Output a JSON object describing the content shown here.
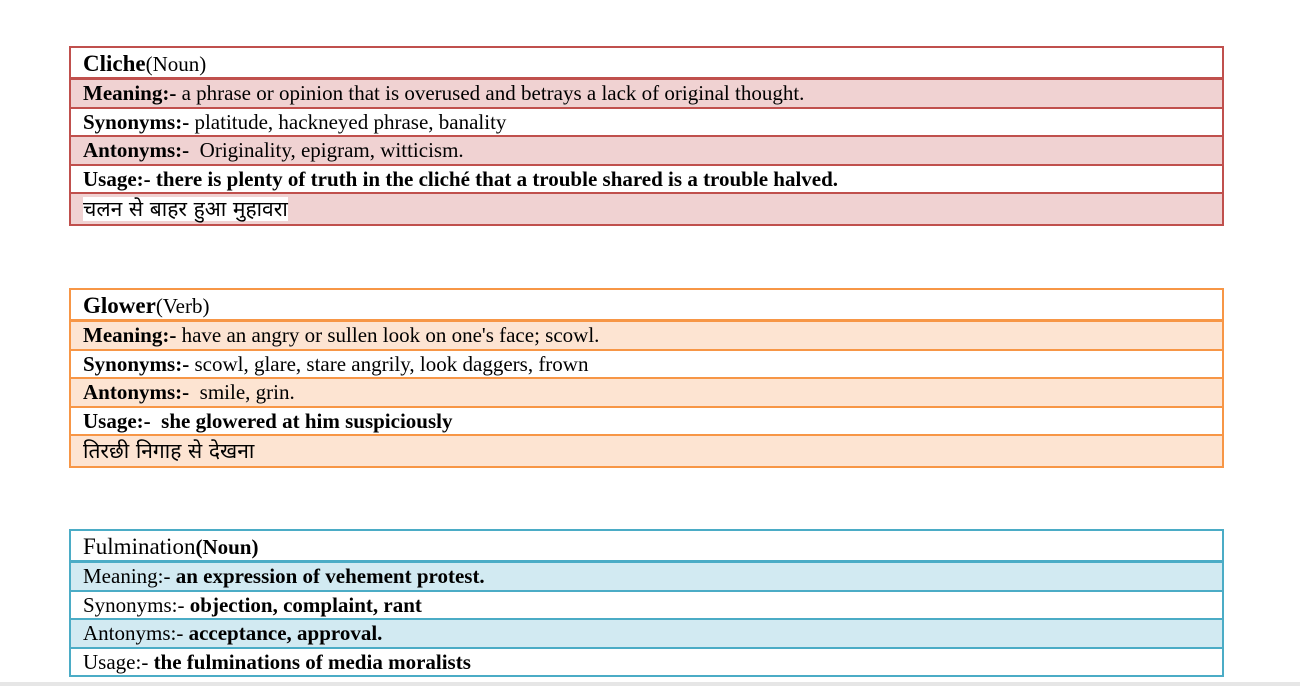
{
  "cards": [
    {
      "word": "Cliche",
      "pos": "(Noun)",
      "meaning_label": "Meaning:-",
      "meaning": " a phrase or opinion that is overused and betrays a lack of original thought.",
      "synonyms_label": "Synonyms:-",
      "synonyms": " platitude, hackneyed phrase, banality",
      "antonyms_label": "Antonyms:-",
      "antonyms": "  Originality, epigram, witticism.",
      "usage_label": "Usage:-",
      "usage": " there is plenty of truth in the cliché that a trouble shared is a trouble halved.",
      "hindi": "चलन से बाहर हुआ मुहावरा",
      "color": "#c0504d"
    },
    {
      "word": "Glower",
      "pos": "(Verb)",
      "meaning_label": "Meaning:-",
      "meaning": " have an angry or sullen look on one's face; scowl.",
      "synonyms_label": "Synonyms:-",
      "synonyms": " scowl, glare, stare angrily, look daggers, frown",
      "antonyms_label": "Antonyms:-",
      "antonyms": "  smile, grin.",
      "usage_label": "Usage:-",
      "usage": "  she glowered at him suspiciously",
      "hindi": "तिरछी निगाह से देखना",
      "color": "#f79646"
    },
    {
      "word": "Fulmination",
      "pos": "(Noun)",
      "meaning_label": "Meaning:-",
      "meaning": " an expression of vehement protest.",
      "synonyms_label": "Synonyms:-",
      "synonyms": " objection, complaint, rant",
      "antonyms_label": "Antonyms:-",
      "antonyms": " acceptance, approval.",
      "usage_label": "Usage:-",
      "usage": " the fulminations of media moralists",
      "color": "#4bacc6"
    }
  ]
}
